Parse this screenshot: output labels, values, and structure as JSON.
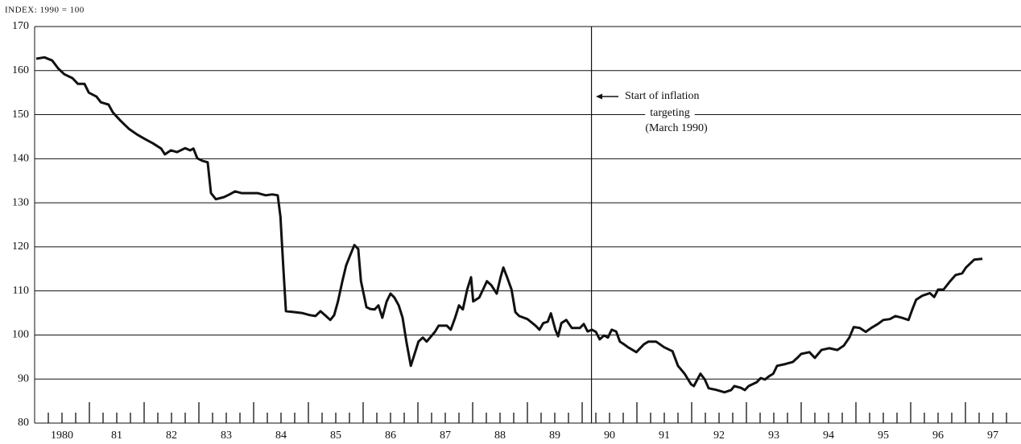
{
  "chart_data": {
    "type": "line",
    "title": "INDEX: 1990 = 100",
    "x": [
      1980.03,
      1980.18,
      1980.32,
      1980.43,
      1980.54,
      1980.69,
      1980.79,
      1980.91,
      1980.99,
      1981.13,
      1981.21,
      1981.35,
      1981.43,
      1981.57,
      1981.72,
      1981.87,
      1982.01,
      1982.16,
      1982.31,
      1982.38,
      1982.49,
      1982.6,
      1982.75,
      1982.84,
      1982.9,
      1982.97,
      1983.07,
      1983.16,
      1983.22,
      1983.31,
      1983.46,
      1983.56,
      1983.66,
      1983.78,
      1983.93,
      1984.07,
      1984.22,
      1984.34,
      1984.44,
      1984.49,
      1984.54,
      1984.59,
      1984.74,
      1984.88,
      1985.03,
      1985.13,
      1985.22,
      1985.32,
      1985.4,
      1985.47,
      1985.54,
      1985.62,
      1985.69,
      1985.76,
      1985.84,
      1985.91,
      1985.96,
      1986.06,
      1986.13,
      1986.21,
      1986.28,
      1986.35,
      1986.43,
      1986.5,
      1986.57,
      1986.65,
      1986.72,
      1986.79,
      1986.87,
      1986.94,
      1987.01,
      1987.09,
      1987.16,
      1987.31,
      1987.38,
      1987.53,
      1987.6,
      1987.68,
      1987.75,
      1987.82,
      1987.9,
      1987.97,
      1988.01,
      1988.12,
      1988.19,
      1988.26,
      1988.34,
      1988.44,
      1988.51,
      1988.56,
      1988.63,
      1988.71,
      1988.78,
      1988.85,
      1989.0,
      1989.15,
      1989.22,
      1989.29,
      1989.37,
      1989.43,
      1989.51,
      1989.56,
      1989.62,
      1989.71,
      1989.81,
      1989.96,
      1990.03,
      1990.1,
      1990.18,
      1990.25,
      1990.32,
      1990.4,
      1990.47,
      1990.54,
      1990.62,
      1990.69,
      1990.76,
      1990.84,
      1990.99,
      1991.13,
      1991.21,
      1991.35,
      1991.5,
      1991.65,
      1991.75,
      1991.87,
      1991.99,
      1992.04,
      1992.16,
      1992.24,
      1992.31,
      1992.46,
      1992.6,
      1992.72,
      1992.78,
      1992.9,
      1992.97,
      1993.04,
      1993.19,
      1993.26,
      1993.34,
      1993.41,
      1993.49,
      1993.56,
      1993.71,
      1993.85,
      1993.93,
      1994.0,
      1994.15,
      1994.25,
      1994.37,
      1994.51,
      1994.66,
      1994.78,
      1994.88,
      1994.96,
      1995.07,
      1995.18,
      1995.28,
      1995.4,
      1995.5,
      1995.62,
      1995.72,
      1995.84,
      1995.96,
      1996.03,
      1996.1,
      1996.21,
      1996.35,
      1996.43,
      1996.5,
      1996.6,
      1996.72,
      1996.82,
      1996.94,
      1997.01,
      1997.16,
      1997.31
    ],
    "series": [
      {
        "color": "#111111",
        "values": [
          162.7,
          163.0,
          162.3,
          160.5,
          159.2,
          158.3,
          157.0,
          157.0,
          155.0,
          154.1,
          152.8,
          152.3,
          150.5,
          148.6,
          146.8,
          145.5,
          144.5,
          143.5,
          142.3,
          141.0,
          141.9,
          141.5,
          142.4,
          141.9,
          142.3,
          140.1,
          139.5,
          139.2,
          132.2,
          130.8,
          131.3,
          131.9,
          132.6,
          132.2,
          132.2,
          132.2,
          131.7,
          131.9,
          131.7,
          126.8,
          115.8,
          105.4,
          105.2,
          105.0,
          104.5,
          104.3,
          105.4,
          104.3,
          103.4,
          104.5,
          107.6,
          112.2,
          115.8,
          118.0,
          120.4,
          119.5,
          112.2,
          106.3,
          105.9,
          105.8,
          106.7,
          103.9,
          107.6,
          109.4,
          108.5,
          106.7,
          103.9,
          98.5,
          93.0,
          95.7,
          98.5,
          99.4,
          98.5,
          100.7,
          102.1,
          102.1,
          101.2,
          103.9,
          106.7,
          105.8,
          110.3,
          113.1,
          107.6,
          108.5,
          110.3,
          112.2,
          111.3,
          109.4,
          113.1,
          115.3,
          113.1,
          110.3,
          105.2,
          104.3,
          103.6,
          102.1,
          101.2,
          102.7,
          103.0,
          104.9,
          101.2,
          99.7,
          102.7,
          103.4,
          101.6,
          101.6,
          102.5,
          100.8,
          101.2,
          100.7,
          99.0,
          99.9,
          99.4,
          101.2,
          100.8,
          98.5,
          97.9,
          97.2,
          96.1,
          97.9,
          98.5,
          98.5,
          97.2,
          96.3,
          93.0,
          91.2,
          88.8,
          88.4,
          91.2,
          89.9,
          87.9,
          87.5,
          87.0,
          87.5,
          88.4,
          88.0,
          87.5,
          88.4,
          89.3,
          90.2,
          89.9,
          90.6,
          91.2,
          93.0,
          93.4,
          93.9,
          94.8,
          95.7,
          96.1,
          94.8,
          96.6,
          97.0,
          96.6,
          97.6,
          99.4,
          101.8,
          101.6,
          100.7,
          101.6,
          102.5,
          103.4,
          103.6,
          104.3,
          103.9,
          103.4,
          105.8,
          108.0,
          108.9,
          109.5,
          108.6,
          110.3,
          110.3,
          112.2,
          113.6,
          114.0,
          115.3,
          117.1,
          117.3
        ]
      }
    ],
    "xlim": [
      1980,
      1998
    ],
    "xticks": [
      {
        "value": 1980.5,
        "label": "1980"
      },
      {
        "value": 1981.5,
        "label": "81"
      },
      {
        "value": 1982.5,
        "label": "82"
      },
      {
        "value": 1983.5,
        "label": "83"
      },
      {
        "value": 1984.5,
        "label": "84"
      },
      {
        "value": 1985.5,
        "label": "85"
      },
      {
        "value": 1986.5,
        "label": "86"
      },
      {
        "value": 1987.5,
        "label": "87"
      },
      {
        "value": 1988.5,
        "label": "88"
      },
      {
        "value": 1989.5,
        "label": "89"
      },
      {
        "value": 1990.5,
        "label": "90"
      },
      {
        "value": 1991.5,
        "label": "91"
      },
      {
        "value": 1992.5,
        "label": "92"
      },
      {
        "value": 1993.5,
        "label": "93"
      },
      {
        "value": 1994.5,
        "label": "94"
      },
      {
        "value": 1995.5,
        "label": "95"
      },
      {
        "value": 1996.5,
        "label": "96"
      },
      {
        "value": 1997.5,
        "label": "97"
      }
    ],
    "ylim": [
      80,
      170
    ],
    "yticks": [
      80,
      90,
      100,
      110,
      120,
      130,
      140,
      150,
      160,
      170
    ],
    "grid": true,
    "annotation": {
      "x": 1990.17,
      "lines": [
        "Start of inflation",
        "targeting",
        "(March 1990)"
      ]
    }
  }
}
